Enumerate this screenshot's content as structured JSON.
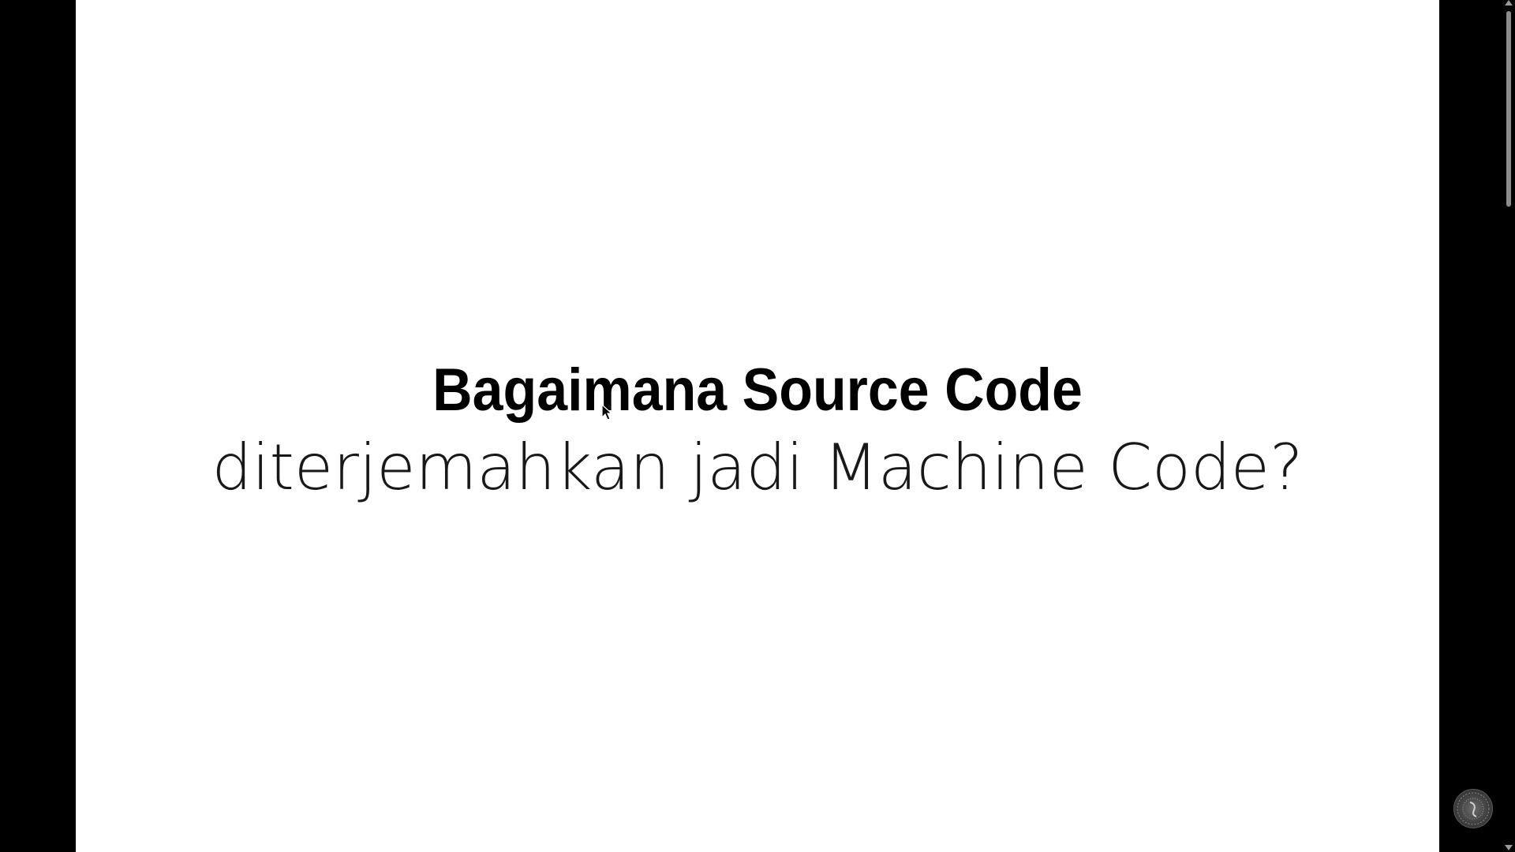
{
  "slide": {
    "title": "Bagaimana Source Code",
    "subtitle": "diterjemahkan jadi Machine Code?"
  },
  "icons": {
    "cursor": "mouse-pointer-icon",
    "scroll_up": "chevron-up-icon",
    "scroll_down": "chevron-down-icon",
    "watermark": "logo-watermark-icon"
  },
  "colors": {
    "background": "#000000",
    "slide": "#ffffff",
    "text": "#000000",
    "scrollbar_thumb": "#8c8c8c"
  }
}
